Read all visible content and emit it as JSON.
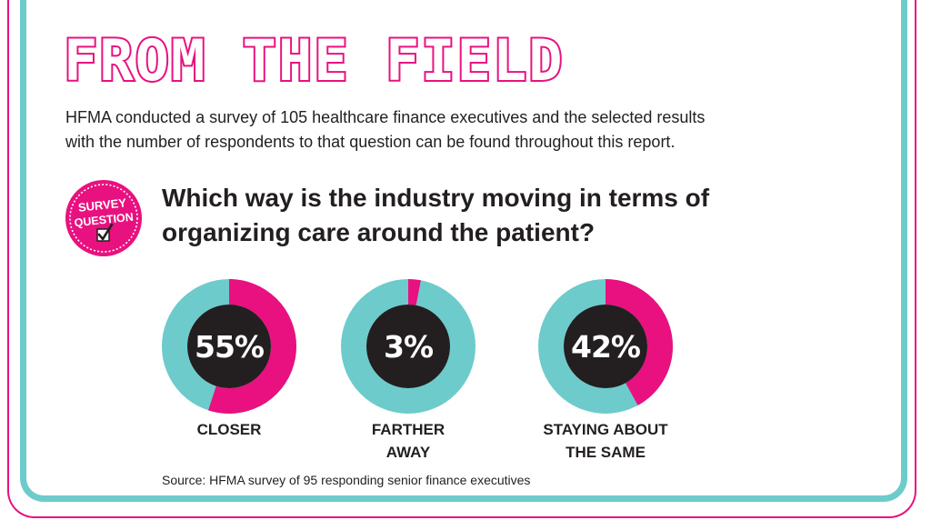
{
  "header": {
    "title": "FROM THE FIELD",
    "intro_line1": "HFMA conducted a survey of 105 healthcare finance executives and the selected results",
    "intro_line2": "with the number of respondents to that question can be found throughout this report."
  },
  "badge": {
    "line1": "SURVEY",
    "line2": "QUESTION",
    "icon": "checkbox-icon"
  },
  "question": {
    "line1": "Which way is the industry moving in terms of",
    "line2": "organizing care around the patient?"
  },
  "colors": {
    "pink": "#e8117f",
    "teal": "#6ecbcc",
    "dark": "#231f20",
    "white": "#ffffff"
  },
  "chart_data": {
    "type": "pie",
    "subtype": "donut",
    "title": "Which way is the industry moving in terms of organizing care around the patient?",
    "unit": "%",
    "categories": [
      "CLOSER",
      "FARTHER AWAY",
      "STAYING ABOUT THE SAME"
    ],
    "values": [
      55,
      3,
      42
    ],
    "labels": [
      "55%",
      "3%",
      "42%"
    ],
    "category_lines": [
      [
        "CLOSER"
      ],
      [
        "FARTHER",
        "AWAY"
      ],
      [
        "STAYING ABOUT",
        "THE SAME"
      ]
    ]
  },
  "footer": {
    "source": "Source: HFMA survey of 95 responding senior finance executives"
  }
}
